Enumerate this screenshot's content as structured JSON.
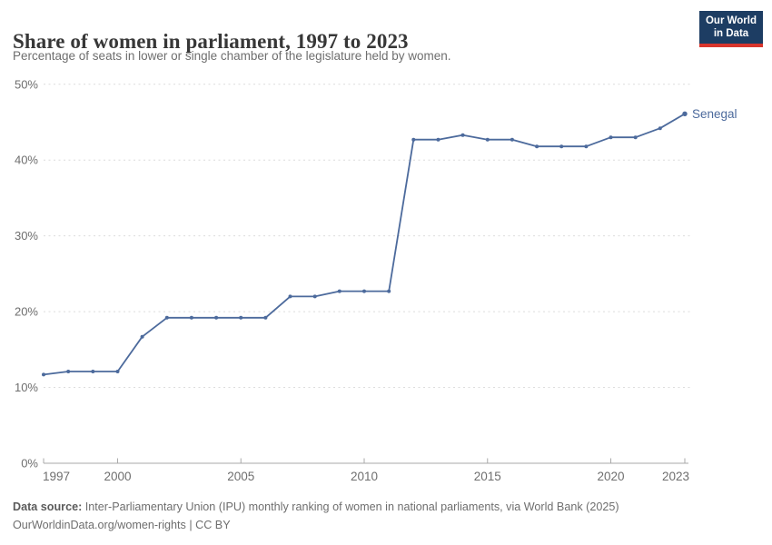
{
  "header": {
    "title": "Share of women in parliament, 1997 to 2023",
    "subtitle": "Percentage of seats in lower or single chamber of the legislature held by women.",
    "logo": {
      "line1": "Our World",
      "line2": "in Data",
      "bg_color": "#1d3d63",
      "accent_color": "#d8352c"
    }
  },
  "chart_data": {
    "type": "line",
    "title": "Share of women in parliament, 1997 to 2023",
    "subtitle": "Percentage of seats in lower or single chamber of the legislature held by women.",
    "xlabel": "",
    "ylabel": "",
    "xlim": [
      1997,
      2023
    ],
    "ylim": [
      0,
      50
    ],
    "x_ticks": [
      1997,
      2000,
      2005,
      2010,
      2015,
      2020,
      2023
    ],
    "y_ticks": [
      0,
      10,
      20,
      30,
      40,
      50
    ],
    "y_tick_suffix": "%",
    "grid": "horizontal-dashed",
    "legend_position": "end-of-line-label",
    "grid_color": "#dcdcdc",
    "axis_color": "#a8a8a8",
    "tick_label_color": "#6e6e6e",
    "series": [
      {
        "name": "Senegal",
        "color": "#4c6a9c",
        "x": [
          1997,
          1998,
          1999,
          2000,
          2001,
          2002,
          2003,
          2004,
          2005,
          2006,
          2007,
          2008,
          2009,
          2010,
          2011,
          2012,
          2013,
          2014,
          2015,
          2016,
          2017,
          2018,
          2019,
          2020,
          2021,
          2022,
          2023
        ],
        "values": [
          11.7,
          12.1,
          12.1,
          12.1,
          16.7,
          19.2,
          19.2,
          19.2,
          19.2,
          19.2,
          22.0,
          22.0,
          22.7,
          22.7,
          22.7,
          42.7,
          42.7,
          43.3,
          42.7,
          42.7,
          41.8,
          41.8,
          41.8,
          43.0,
          43.0,
          44.2,
          46.1
        ]
      }
    ]
  },
  "footer": {
    "source_label": "Data source:",
    "source_text": "Inter-Parliamentary Union (IPU) monthly ranking of women in national parliaments, via World Bank (2025)",
    "license_line": "OurWorldinData.org/women-rights | CC BY"
  }
}
